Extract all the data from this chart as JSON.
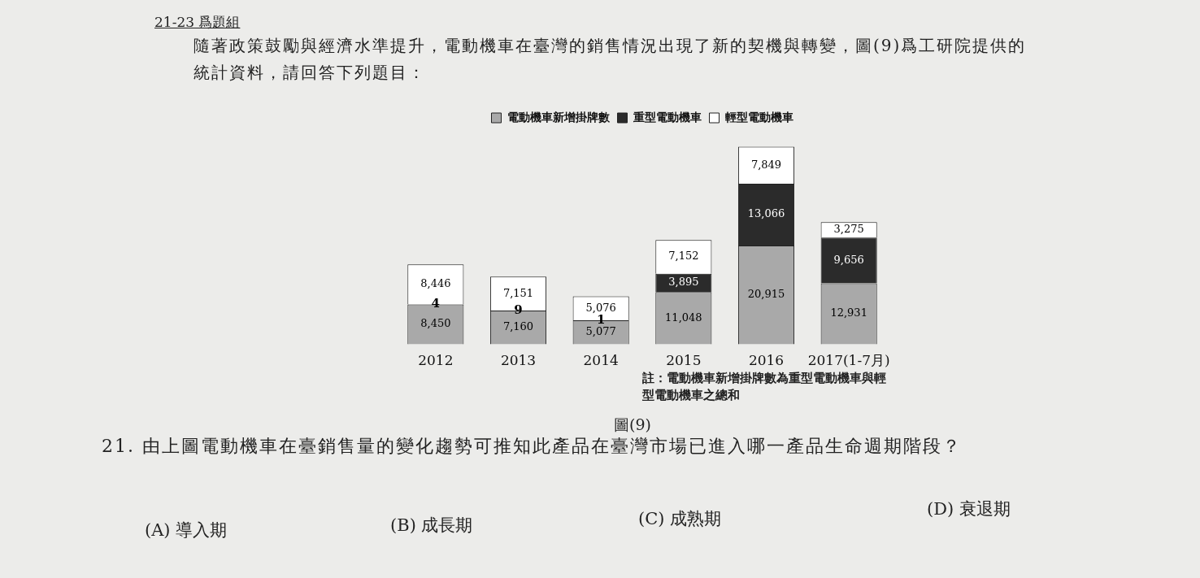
{
  "chart_data": {
    "type": "bar",
    "stacked": true,
    "title": "21-23 爲題組",
    "subtitle": "隨著政策鼓勵與經濟水準提升，電動機車在臺灣的銷售情況出現了新的契機與轉變，圖(9)爲工研院提供的統計資料，請回答下列題目：",
    "categories": [
      "2012",
      "2013",
      "2014",
      "2015",
      "2016",
      "2017(1-7月)"
    ],
    "series": [
      {
        "name": "電動機車新增掛牌數",
        "color": "#a9a9a9",
        "values": [
          8450,
          7160,
          5077,
          11048,
          20915,
          12931
        ],
        "value_labels": [
          "8,450",
          "7,160",
          "5,077",
          "11,048",
          "20,915",
          "12,931"
        ]
      },
      {
        "name": "重型電動機車",
        "color": "#2b2b2b",
        "values": [
          4,
          9,
          1,
          3895,
          13066,
          9656
        ],
        "value_labels": [
          "4",
          "9",
          "1",
          "3,895",
          "13,066",
          "9,656"
        ]
      },
      {
        "name": "輕型電動機車",
        "color": "#ffffff",
        "values": [
          8446,
          7151,
          5076,
          7152,
          7849,
          3275
        ],
        "value_labels": [
          "8,446",
          "7,151",
          "5,076",
          "7,152",
          "7,849",
          "3,275"
        ]
      }
    ],
    "legend": "top",
    "grid": false,
    "tick_labels": "x",
    "annotations": [
      "註：電動機車新增掛牌數為重型電動機車與輕型電動機車之總和",
      "圖(9)",
      "21. 由上圖電動機車在臺銷售量的變化趨勢可推知此產品在臺灣市場已進入哪一產品生命週期階段？",
      "(A) 導入期",
      "(B) 成長期",
      "(C) 成熟期",
      "(D) 衰退期"
    ]
  }
}
